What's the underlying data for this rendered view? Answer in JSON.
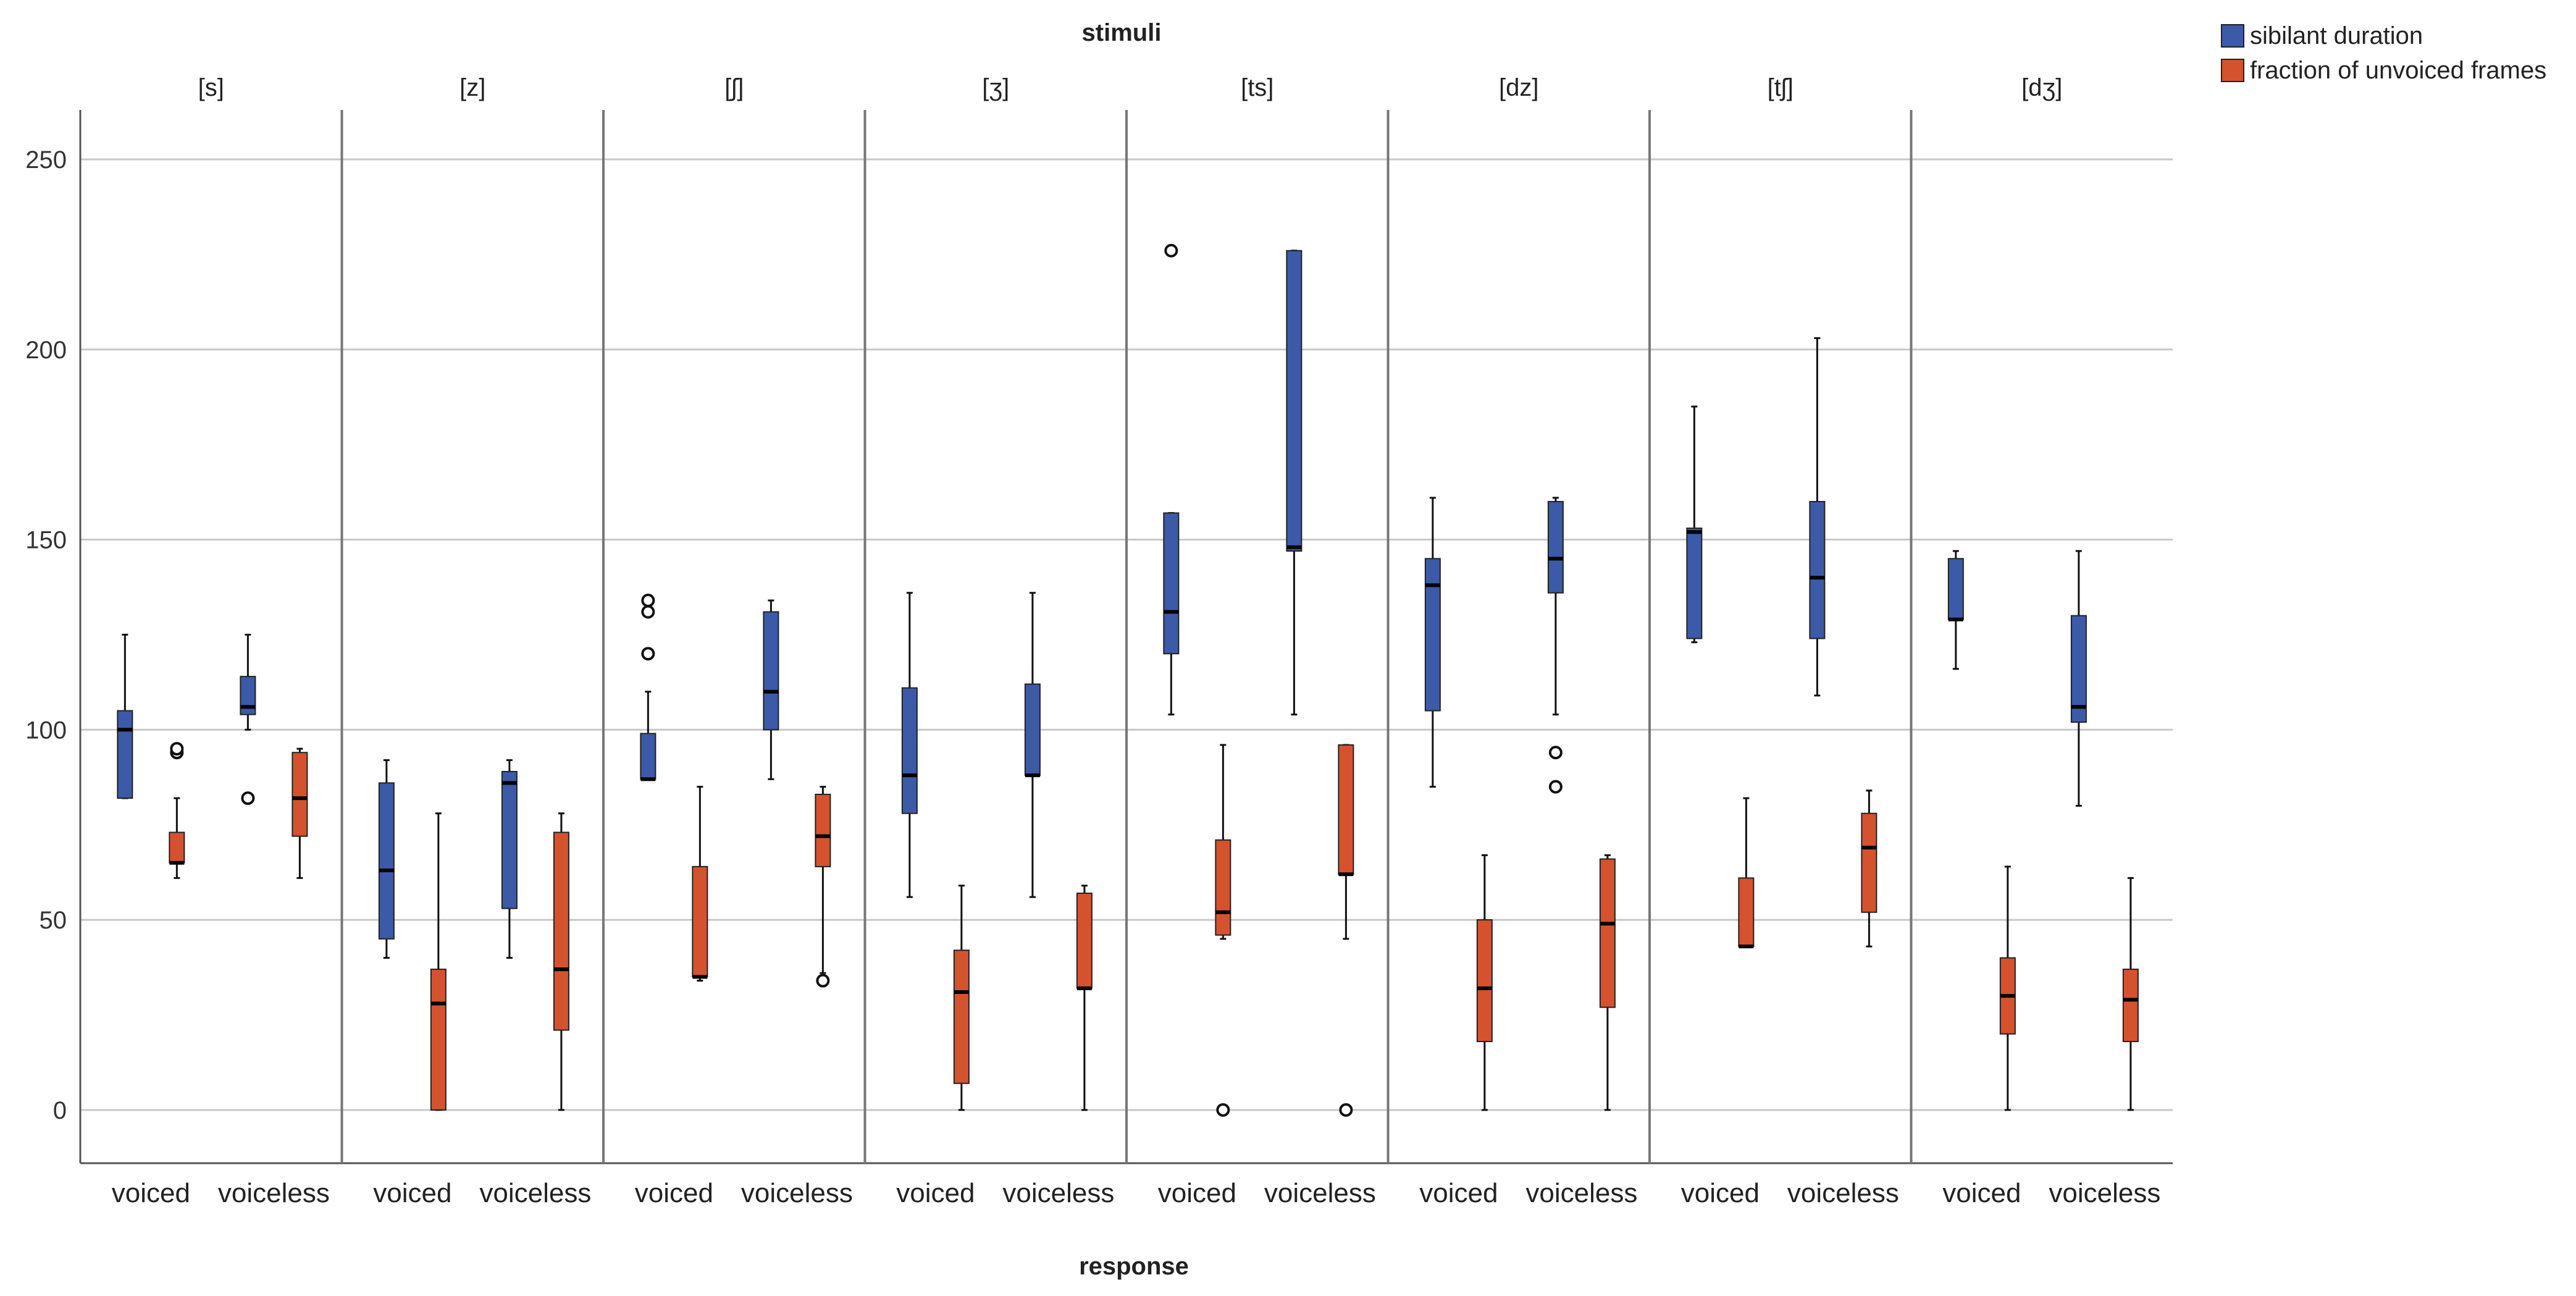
{
  "chart_data": {
    "type": "boxplot",
    "title": "stimuli",
    "xlabel": "response",
    "ylabel": "",
    "ylim": [
      -14,
      263
    ],
    "yticks": [
      0,
      50,
      100,
      150,
      200,
      250
    ],
    "grid": true,
    "legend_position": "top-right",
    "categories": [
      "voiced",
      "voiceless"
    ],
    "series": [
      {
        "name": "sibilant duration",
        "color": "#3c5aa8"
      },
      {
        "name": "fraction of unvoiced frames",
        "color": "#d4532e"
      }
    ],
    "panels": [
      {
        "label": "[s]",
        "groups": [
          {
            "boxes": [
              {
                "min": 82,
                "q1": 82,
                "median": 100,
                "q3": 105,
                "max": 125,
                "outliers": []
              },
              {
                "min": 61,
                "q1": 65,
                "median": 65,
                "q3": 73,
                "max": 82,
                "outliers": [
                  94,
                  95
                ]
              }
            ]
          },
          {
            "boxes": [
              {
                "min": 100,
                "q1": 104,
                "median": 106,
                "q3": 114,
                "max": 125,
                "outliers": [
                  82
                ]
              },
              {
                "min": 61,
                "q1": 72,
                "median": 82,
                "q3": 94,
                "max": 95,
                "outliers": []
              }
            ]
          }
        ]
      },
      {
        "label": "[z]",
        "groups": [
          {
            "boxes": [
              {
                "min": 40,
                "q1": 45,
                "median": 63,
                "q3": 86,
                "max": 92,
                "outliers": []
              },
              {
                "min": 0,
                "q1": 0,
                "median": 28,
                "q3": 37,
                "max": 78,
                "outliers": []
              }
            ]
          },
          {
            "boxes": [
              {
                "min": 40,
                "q1": 53,
                "median": 86,
                "q3": 89,
                "max": 92,
                "outliers": []
              },
              {
                "min": 0,
                "q1": 21,
                "median": 37,
                "q3": 73,
                "max": 78,
                "outliers": []
              }
            ]
          }
        ]
      },
      {
        "label": "[ʃ]",
        "groups": [
          {
            "boxes": [
              {
                "min": 87,
                "q1": 87,
                "median": 87,
                "q3": 99,
                "max": 110,
                "outliers": [
                  120,
                  131,
                  134
                ]
              },
              {
                "min": 34,
                "q1": 35,
                "median": 35,
                "q3": 64,
                "max": 85,
                "outliers": []
              }
            ]
          },
          {
            "boxes": [
              {
                "min": 87,
                "q1": 100,
                "median": 110,
                "q3": 131,
                "max": 134,
                "outliers": []
              },
              {
                "min": 36,
                "q1": 64,
                "median": 72,
                "q3": 83,
                "max": 85,
                "outliers": [
                  34
                ]
              }
            ]
          }
        ]
      },
      {
        "label": "[ʒ]",
        "groups": [
          {
            "boxes": [
              {
                "min": 56,
                "q1": 78,
                "median": 88,
                "q3": 111,
                "max": 136,
                "outliers": []
              },
              {
                "min": 0,
                "q1": 7,
                "median": 31,
                "q3": 42,
                "max": 59,
                "outliers": []
              }
            ]
          },
          {
            "boxes": [
              {
                "min": 56,
                "q1": 88,
                "median": 88,
                "q3": 112,
                "max": 136,
                "outliers": []
              },
              {
                "min": 0,
                "q1": 32,
                "median": 32,
                "q3": 57,
                "max": 59,
                "outliers": []
              }
            ]
          }
        ]
      },
      {
        "label": "[ts]",
        "groups": [
          {
            "boxes": [
              {
                "min": 104,
                "q1": 120,
                "median": 131,
                "q3": 157,
                "max": 157,
                "outliers": [
                  226
                ]
              },
              {
                "min": 45,
                "q1": 46,
                "median": 52,
                "q3": 71,
                "max": 96,
                "outliers": [
                  0
                ]
              }
            ]
          },
          {
            "boxes": [
              {
                "min": 104,
                "q1": 147,
                "median": 148,
                "q3": 226,
                "max": 226,
                "outliers": []
              },
              {
                "min": 45,
                "q1": 62,
                "median": 62,
                "q3": 96,
                "max": 96,
                "outliers": [
                  0
                ]
              }
            ]
          }
        ]
      },
      {
        "label": "[dz]",
        "groups": [
          {
            "boxes": [
              {
                "min": 85,
                "q1": 105,
                "median": 138,
                "q3": 145,
                "max": 161,
                "outliers": []
              },
              {
                "min": 0,
                "q1": 18,
                "median": 32,
                "q3": 50,
                "max": 67,
                "outliers": []
              }
            ]
          },
          {
            "boxes": [
              {
                "min": 104,
                "q1": 136,
                "median": 145,
                "q3": 160,
                "max": 161,
                "outliers": [
                  85,
                  94
                ]
              },
              {
                "min": 0,
                "q1": 27,
                "median": 49,
                "q3": 66,
                "max": 67,
                "outliers": []
              }
            ]
          }
        ]
      },
      {
        "label": "[tʃ]",
        "groups": [
          {
            "boxes": [
              {
                "min": 123,
                "q1": 124,
                "median": 152,
                "q3": 153,
                "max": 185,
                "outliers": []
              },
              {
                "min": 43,
                "q1": 43,
                "median": 43,
                "q3": 61,
                "max": 82,
                "outliers": []
              }
            ]
          },
          {
            "boxes": [
              {
                "min": 109,
                "q1": 124,
                "median": 140,
                "q3": 160,
                "max": 203,
                "outliers": []
              },
              {
                "min": 43,
                "q1": 52,
                "median": 69,
                "q3": 78,
                "max": 84,
                "outliers": []
              }
            ]
          }
        ]
      },
      {
        "label": "[dʒ]",
        "groups": [
          {
            "boxes": [
              {
                "min": 116,
                "q1": 129,
                "median": 129,
                "q3": 145,
                "max": 147,
                "outliers": []
              },
              {
                "min": 0,
                "q1": 20,
                "median": 30,
                "q3": 40,
                "max": 64,
                "outliers": []
              }
            ]
          },
          {
            "boxes": [
              {
                "min": 80,
                "q1": 102,
                "median": 106,
                "q3": 130,
                "max": 147,
                "outliers": []
              },
              {
                "min": 0,
                "q1": 18,
                "median": 29,
                "q3": 37,
                "max": 61,
                "outliers": []
              }
            ]
          }
        ]
      }
    ]
  }
}
